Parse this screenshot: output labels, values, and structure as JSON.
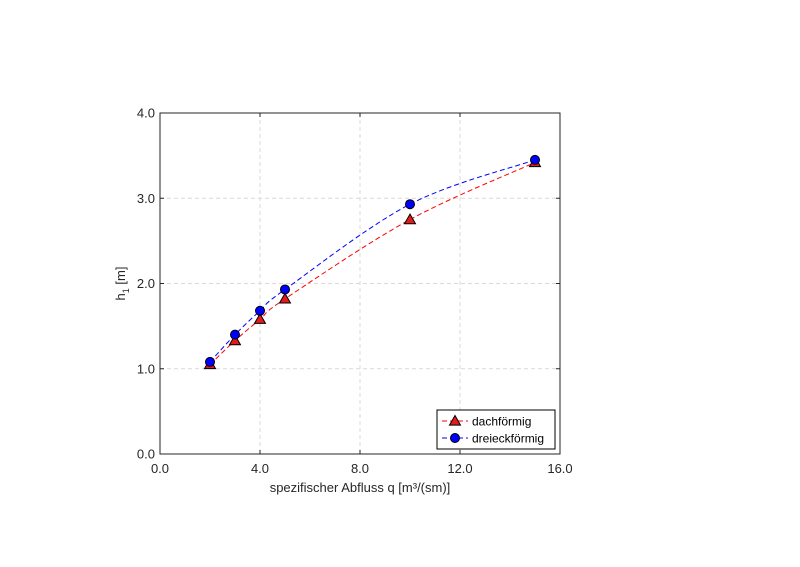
{
  "chart_data": {
    "type": "line",
    "title": "",
    "xlabel": "spezifischer Abfluss q [m³/(sm)]",
    "ylabel": {
      "main": "h",
      "sub": "1",
      "unit": " [m]"
    },
    "xlim": [
      0,
      16
    ],
    "ylim": [
      0,
      4
    ],
    "xticks": [
      0,
      4,
      8,
      12,
      16
    ],
    "yticks": [
      0,
      1,
      2,
      3,
      4
    ],
    "xtick_labels": [
      "0.0",
      "4.0",
      "8.0",
      "12.0",
      "16.0"
    ],
    "ytick_labels": [
      "0.0",
      "1.0",
      "2.0",
      "3.0",
      "4.0"
    ],
    "grid": true,
    "legend_position": "bottom-right",
    "series": [
      {
        "name": "dachförmig",
        "color": "#e31a1c",
        "line_color": "#ff0000",
        "marker": "triangle",
        "x": [
          2,
          3,
          4,
          5,
          10,
          15
        ],
        "y": [
          1.05,
          1.33,
          1.58,
          1.82,
          2.75,
          3.42
        ]
      },
      {
        "name": "dreieckförmig",
        "color": "#0000ff",
        "line_color": "#0000ff",
        "marker": "circle",
        "x": [
          2,
          3,
          4,
          5,
          10,
          15
        ],
        "y": [
          1.08,
          1.4,
          1.68,
          1.93,
          2.93,
          3.45
        ]
      }
    ]
  }
}
